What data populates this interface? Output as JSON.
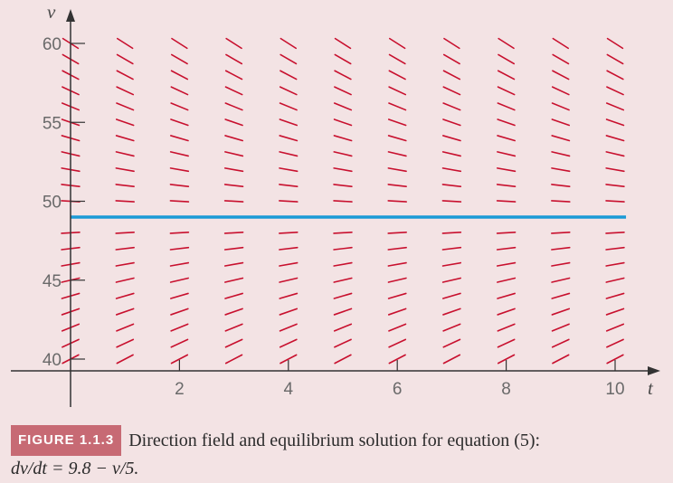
{
  "chart_data": {
    "type": "direction_field",
    "xlabel": "t",
    "ylabel": "v",
    "xlim": [
      0,
      10
    ],
    "ylim": [
      40,
      60
    ],
    "x_ticks": [
      2,
      4,
      6,
      8,
      10
    ],
    "y_ticks": [
      40,
      45,
      50,
      55,
      60
    ],
    "slope_function": "9.8 - v/5",
    "field_t": [
      0,
      1,
      2,
      3,
      4,
      5,
      6,
      7,
      8,
      9,
      10
    ],
    "field_v": [
      40,
      41,
      42,
      43,
      44,
      45,
      46,
      47,
      48,
      50,
      51,
      52,
      53,
      54,
      55,
      56,
      57,
      58,
      59,
      60
    ],
    "equilibrium": {
      "v": 49
    },
    "colors": {
      "field": "#c8102e",
      "equilibrium": "#1a9ad6",
      "axis": "#333333"
    }
  },
  "caption": {
    "badge": "FIGURE 1.1.3",
    "text": "Direction field and equilibrium solution for equation (5):",
    "equation": "dv/dt = 9.8 − v/5."
  }
}
